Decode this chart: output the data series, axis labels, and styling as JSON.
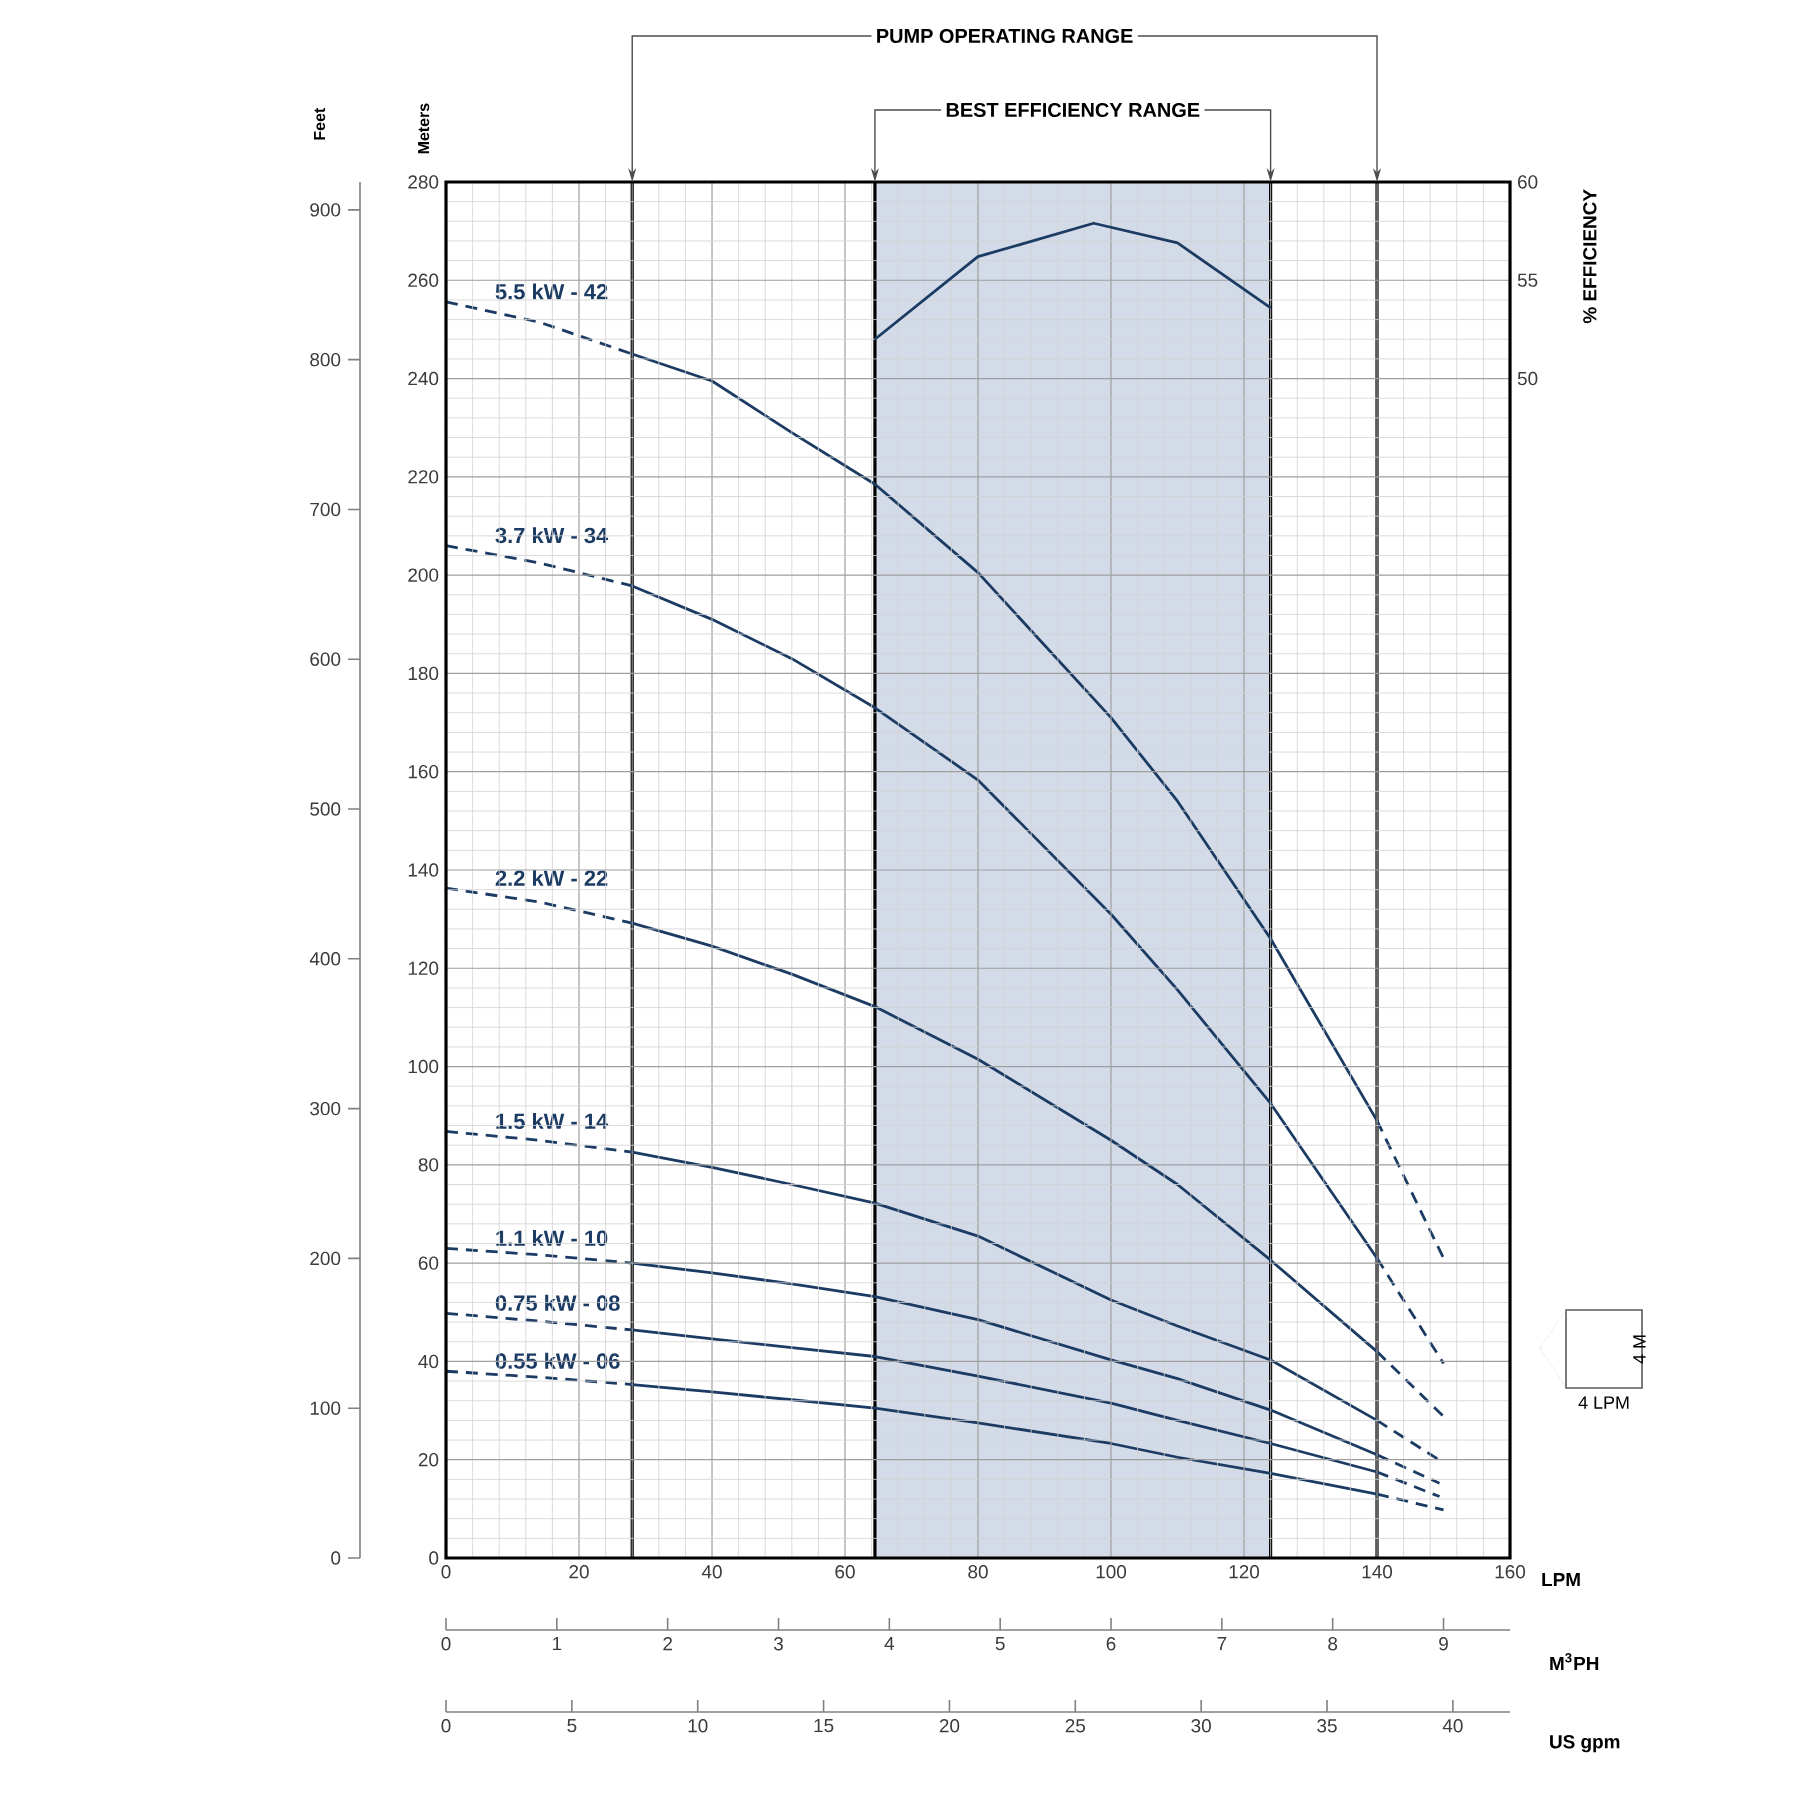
{
  "chart_data": [
    {
      "type": "line",
      "xlabel": "LPM",
      "ylabel": "Meters",
      "y2label": "Feet",
      "x2label": "M$^{3}$PH",
      "xlim": [
        0,
        160
      ],
      "xticks": [
        0,
        20,
        40,
        60,
        80,
        100,
        120,
        140,
        160
      ],
      "ylim": [
        0,
        280
      ],
      "yticks": [
        0,
        20,
        40,
        60,
        80,
        100,
        120,
        140,
        160,
        180,
        200,
        220,
        240,
        260,
        280
      ],
      "y2lim": [
        0,
        918.6
      ],
      "y2ticks": [
        0,
        100,
        200,
        300,
        400,
        500,
        600,
        700,
        800,
        900
      ],
      "x2lim": [
        0,
        9.6
      ],
      "x2ticks": [
        0,
        1,
        2,
        3,
        4,
        5,
        6,
        7,
        8,
        9
      ],
      "grid": true,
      "ref_lines": [
        {
          "axis": "x",
          "value": 28,
          "label": "PUMP OPERATING RANGE"
        },
        {
          "axis": "x",
          "value": 64.5
        },
        {
          "axis": "x",
          "value": 124
        },
        {
          "axis": "x",
          "value": 140
        }
      ],
      "bands": [
        {
          "axis": "x",
          "from": 64.5,
          "to": 124,
          "label": "BEST EFFICIENCY RANGE",
          "color": "#d4dbe8"
        }
      ],
      "series": [
        {
          "name": "5.5 kW - 42",
          "color": "#1b3b63",
          "x": [
            0,
            14,
            28,
            40,
            52,
            64.5,
            80,
            100,
            110,
            124,
            140,
            150
          ],
          "values": [
            255.6,
            251.5,
            245,
            239.5,
            229,
            218.5,
            200.5,
            171,
            154,
            126,
            89,
            61
          ]
        },
        {
          "name": "3.7 kW - 34",
          "color": "#1b3b63",
          "x": [
            0,
            14,
            28,
            40,
            52,
            64.5,
            80,
            100,
            110,
            124,
            140,
            150
          ],
          "values": [
            206,
            202.5,
            197.8,
            191,
            183,
            173,
            158.3,
            131,
            115.6,
            92.5,
            61,
            39.6
          ]
        },
        {
          "name": "2.2 kW - 22",
          "color": "#1b3b63",
          "x": [
            0,
            14,
            28,
            40,
            52,
            64.5,
            80,
            100,
            110,
            124,
            140,
            150
          ],
          "values": [
            136.3,
            133.5,
            129.2,
            124.5,
            118.8,
            112.2,
            101.5,
            85,
            76,
            60.6,
            42,
            28.8
          ]
        },
        {
          "name": "1.5 kW - 14",
          "color": "#1b3b63",
          "x": [
            0,
            14,
            28,
            40,
            52,
            64.5,
            80,
            100,
            110,
            124,
            140,
            149.4
          ],
          "values": [
            86.8,
            85,
            82.6,
            79.5,
            76,
            72.2,
            65.5,
            52.5,
            47.2,
            40.3,
            28,
            19.9
          ]
        },
        {
          "name": "1.1 kW - 10",
          "color": "#1b3b63",
          "x": [
            0,
            14,
            28,
            40,
            52,
            64.5,
            80,
            100,
            110,
            124,
            140,
            149.4
          ],
          "values": [
            63,
            61.7,
            60,
            58,
            55.8,
            53.2,
            48.5,
            40.3,
            36.5,
            30.1,
            21,
            15.2
          ]
        },
        {
          "name": "0.75 kW - 08",
          "color": "#1b3b63",
          "x": [
            0,
            14,
            28,
            40,
            52,
            64.5,
            80,
            100,
            110,
            124,
            140,
            149.4
          ],
          "values": [
            49.8,
            48.2,
            46.4,
            44.6,
            42.8,
            41,
            37,
            31.5,
            28,
            23.3,
            17.5,
            12.5
          ]
        },
        {
          "name": "0.55 kW - 06",
          "color": "#1b3b63",
          "x": [
            0,
            14,
            28,
            40,
            52,
            64.5,
            80,
            100,
            110,
            124,
            140,
            150
          ],
          "values": [
            38,
            36.8,
            35.3,
            33.8,
            32.2,
            30.5,
            27.5,
            23.3,
            20.5,
            17.2,
            13,
            9.8
          ]
        }
      ],
      "annotations": [
        "4 M",
        "4 LPM"
      ]
    },
    {
      "type": "line",
      "xlabel": "US gpm",
      "ylabel": "% EFFICIENCY",
      "xlim": [
        0,
        42.27
      ],
      "xticks": [
        0,
        5,
        10,
        15,
        20,
        25,
        30,
        35,
        40
      ],
      "ylim": [
        -10,
        60
      ],
      "yticks": [
        50,
        55,
        60
      ],
      "series": [
        {
          "color": "#1b3b63",
          "x": [
            17.04,
            21.13,
            25.73,
            29.06,
            32.76
          ],
          "values": [
            52,
            56.2,
            57.9,
            56.9,
            53.6
          ]
        }
      ]
    }
  ]
}
